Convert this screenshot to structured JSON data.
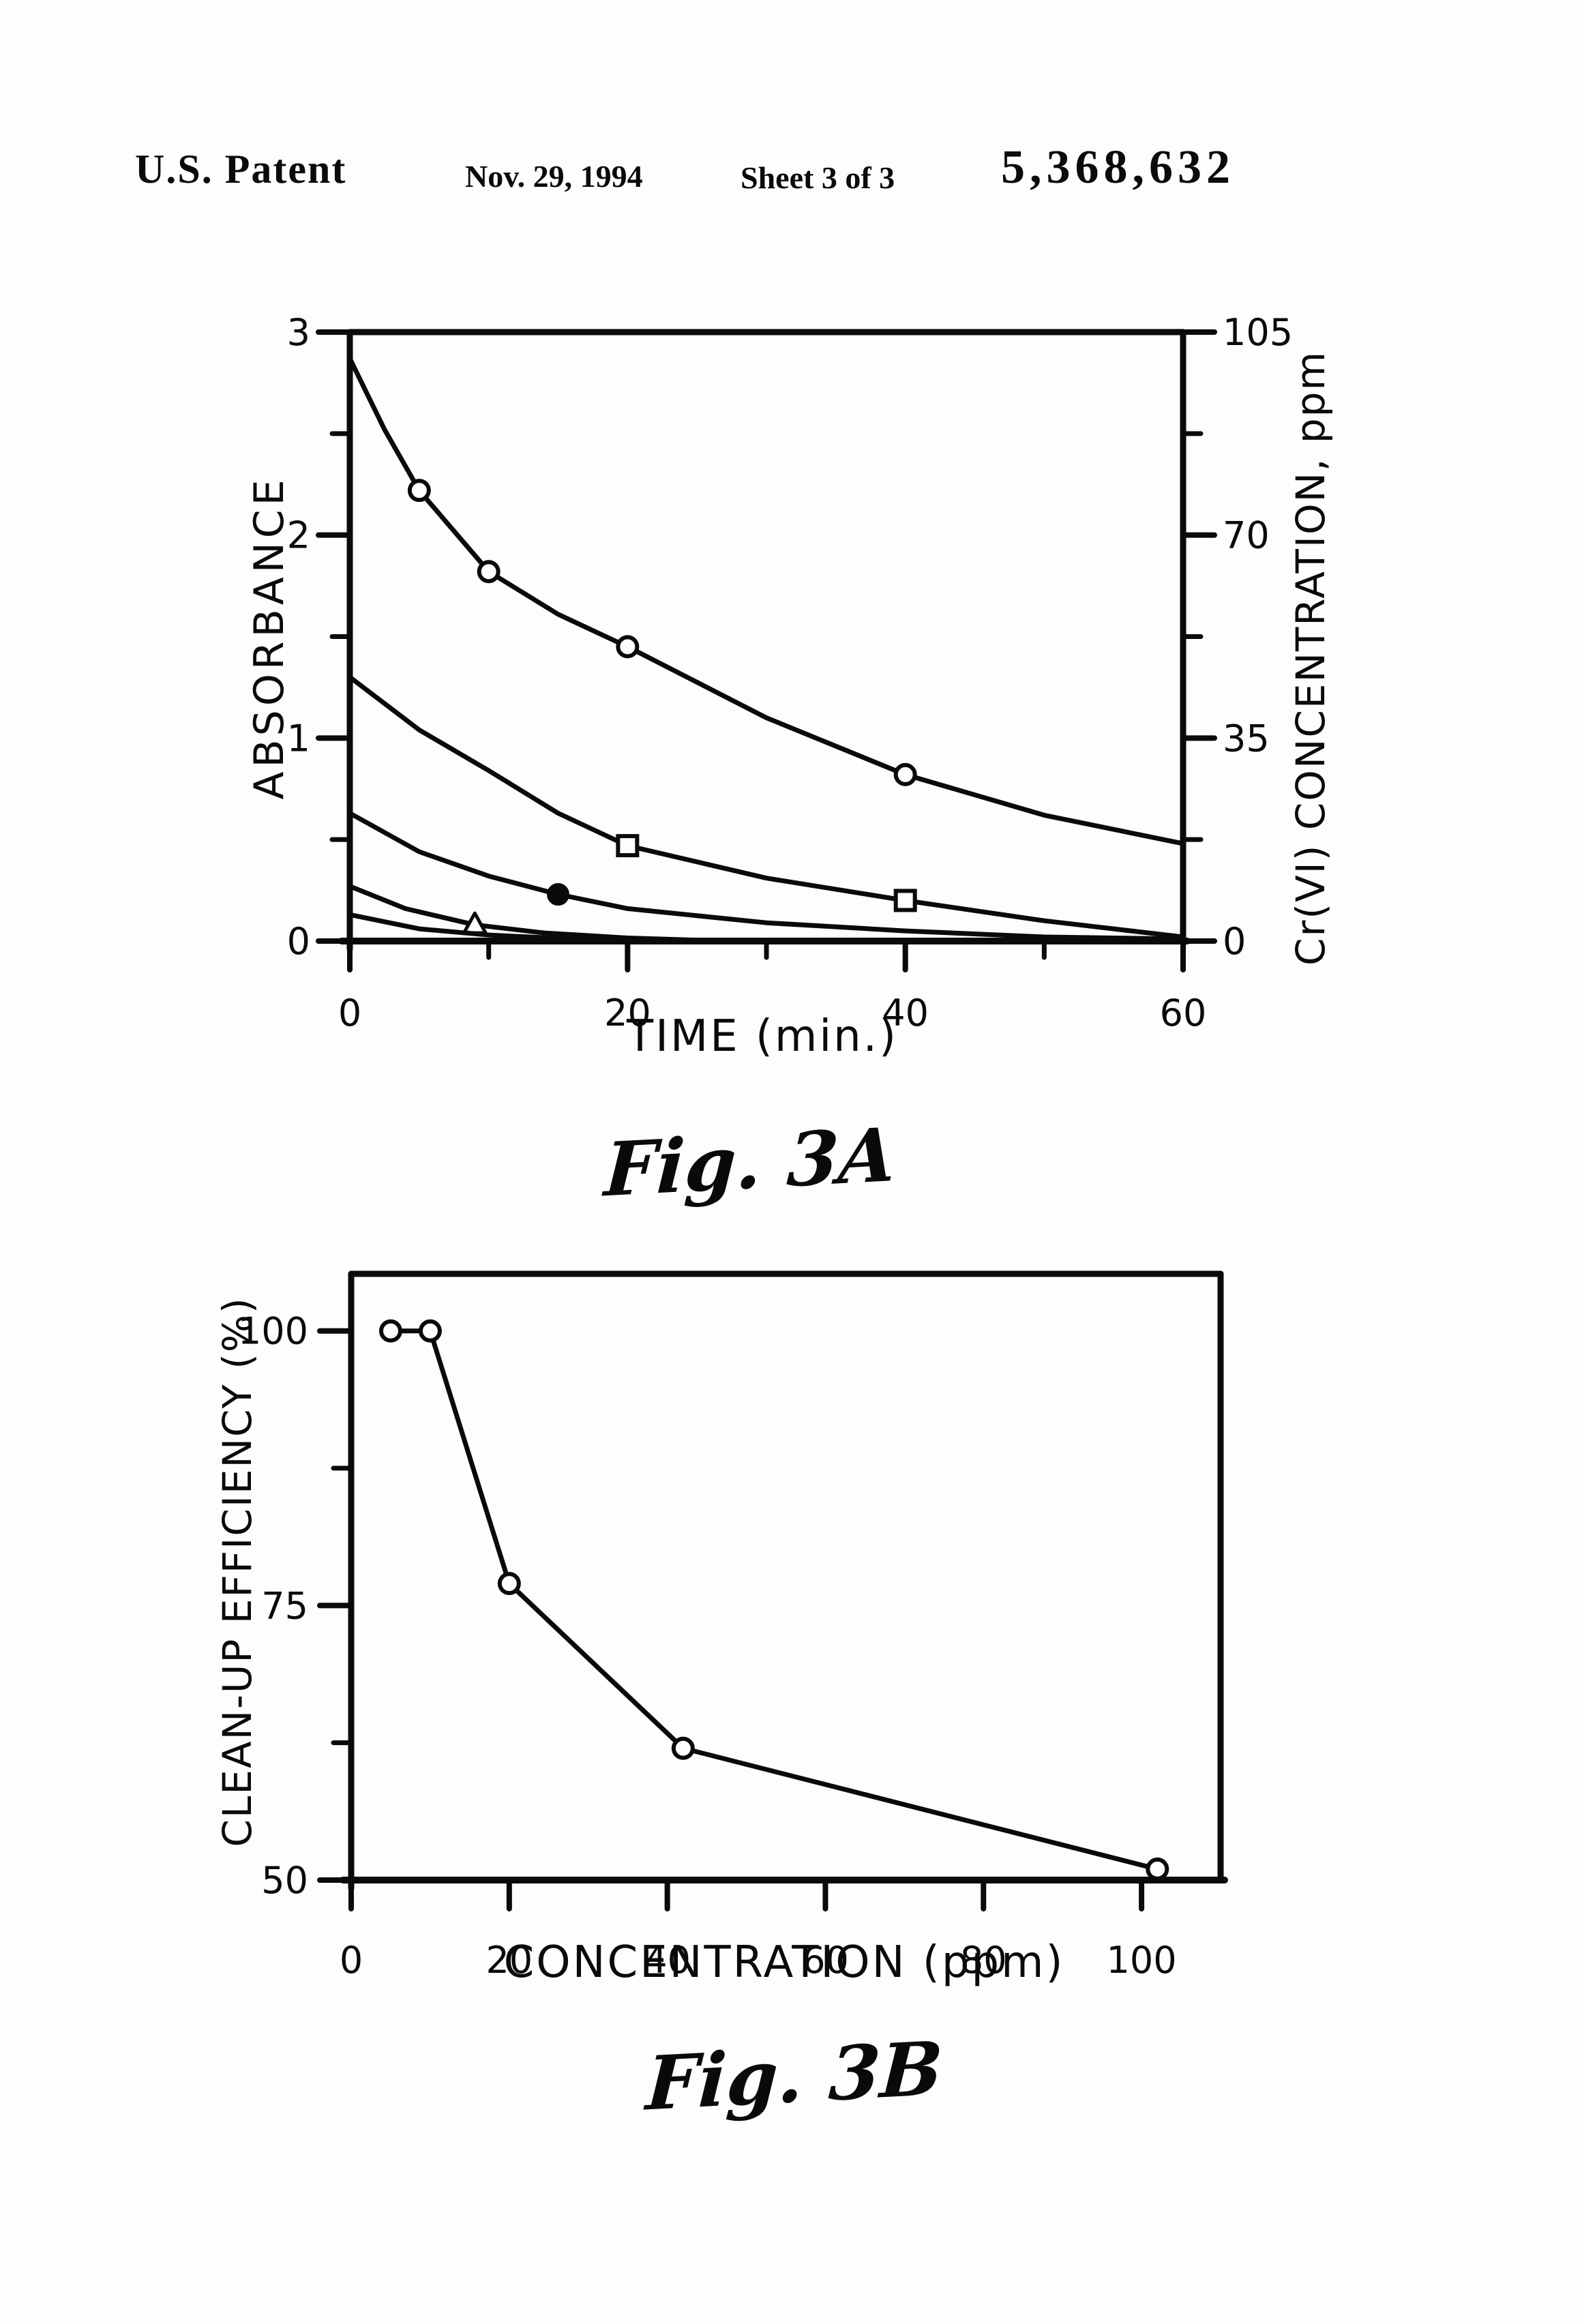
{
  "header": {
    "title": "U.S. Patent",
    "date": "Nov. 29, 1994",
    "sheet": "Sheet 3 of 3",
    "patent_number": "5,368,632"
  },
  "ink_color": "#0a0a0a",
  "paper_color": "#fdfdfc",
  "chart_data": [
    {
      "id": "fig3a",
      "type": "line",
      "title": "Fig. 3A",
      "xlabel": "TIME (min.)",
      "ylabel_left": "ABSORBANCE",
      "ylabel_right": "Cr(VI) CONCENTRATION, ppm",
      "xlim": [
        0,
        60
      ],
      "ylim_left": [
        0,
        3
      ],
      "ylim_right": [
        0,
        105
      ],
      "xticks": [
        0,
        20,
        40,
        60
      ],
      "xminor": [
        10,
        30,
        50
      ],
      "yticks_left": [
        0,
        1,
        2,
        3
      ],
      "yminor_left": [
        0.5,
        1.5,
        2.5
      ],
      "yticks_right": [
        0,
        35,
        70,
        105
      ],
      "yminor_right": [
        17.5,
        52.5,
        87.5
      ],
      "grid": false,
      "legend": "none",
      "series": [
        {
          "marker": "open-circle",
          "points": [
            [
              0,
              2.87
            ],
            [
              2.5,
              2.52
            ],
            [
              5,
              2.22
            ],
            [
              10,
              1.82
            ],
            [
              15,
              1.61
            ],
            [
              20,
              1.45
            ],
            [
              30,
              1.1
            ],
            [
              40,
              0.82
            ],
            [
              50,
              0.62
            ],
            [
              60,
              0.48
            ]
          ],
          "marker_points": [
            [
              5,
              2.22
            ],
            [
              10,
              1.82
            ],
            [
              20,
              1.45
            ],
            [
              40,
              0.82
            ]
          ]
        },
        {
          "marker": "open-square",
          "points": [
            [
              0,
              1.3
            ],
            [
              5,
              1.04
            ],
            [
              10,
              0.84
            ],
            [
              15,
              0.63
            ],
            [
              20,
              0.47
            ],
            [
              30,
              0.31
            ],
            [
              40,
              0.2
            ],
            [
              50,
              0.1
            ],
            [
              60,
              0.02
            ]
          ],
          "marker_points": [
            [
              20,
              0.47
            ],
            [
              40,
              0.2
            ]
          ]
        },
        {
          "marker": "filled-circle",
          "points": [
            [
              0,
              0.63
            ],
            [
              5,
              0.44
            ],
            [
              10,
              0.32
            ],
            [
              15,
              0.23
            ],
            [
              20,
              0.16
            ],
            [
              30,
              0.09
            ],
            [
              40,
              0.05
            ],
            [
              50,
              0.02
            ],
            [
              60,
              0.01
            ]
          ],
          "marker_points": [
            [
              15,
              0.23
            ]
          ]
        },
        {
          "marker": "open-triangle",
          "points": [
            [
              0,
              0.27
            ],
            [
              4,
              0.16
            ],
            [
              9,
              0.08
            ],
            [
              14,
              0.04
            ],
            [
              20,
              0.015
            ],
            [
              27,
              0.0
            ],
            [
              60,
              0.0
            ]
          ],
          "marker_points": [
            [
              9,
              0.08
            ]
          ]
        },
        {
          "marker": "none",
          "points": [
            [
              0,
              0.13
            ],
            [
              5,
              0.06
            ],
            [
              10,
              0.03
            ],
            [
              16,
              0.01
            ],
            [
              22,
              0.0
            ],
            [
              60,
              0.0
            ]
          ],
          "marker_points": []
        }
      ]
    },
    {
      "id": "fig3b",
      "type": "line",
      "title": "Fig. 3B",
      "xlabel": "CONCENTRATION (ppm)",
      "ylabel_left": "CLEAN-UP EFFICIENCY (%)",
      "xlim": [
        0,
        110
      ],
      "ylim_left": [
        50,
        105.2
      ],
      "xticks": [
        0,
        20,
        40,
        60,
        80,
        100
      ],
      "xminor": [],
      "yticks_left": [
        50,
        75,
        100
      ],
      "yminor_left": [
        62.5,
        87.5
      ],
      "yticks_right": [],
      "yminor_right": [],
      "grid": false,
      "legend": "none",
      "series": [
        {
          "marker": "open-circle",
          "points": [
            [
              5,
              100
            ],
            [
              10,
              100
            ],
            [
              20,
              77
            ],
            [
              42,
              62
            ],
            [
              102,
              51
            ]
          ],
          "marker_points": [
            [
              5,
              100
            ],
            [
              10,
              100
            ],
            [
              20,
              77
            ],
            [
              42,
              62
            ],
            [
              102,
              51
            ]
          ]
        }
      ]
    }
  ]
}
